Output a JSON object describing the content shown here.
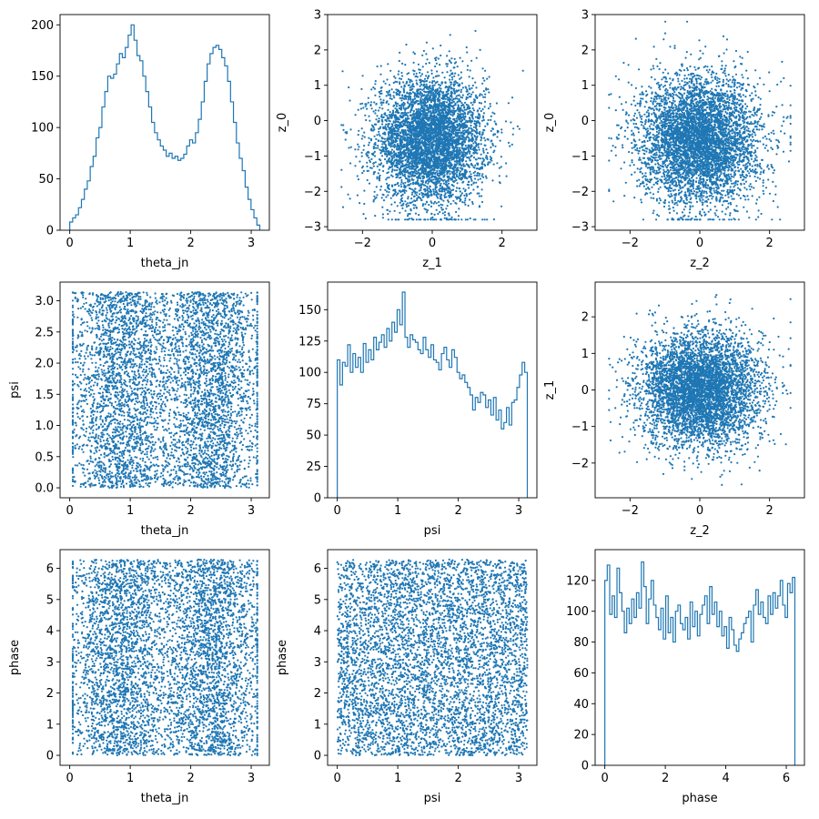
{
  "colors": {
    "series": "#1f77b4",
    "axes": "#000000",
    "background": "#ffffff"
  },
  "chart_data": [
    {
      "id": "theta_jn-hist",
      "type": "histogram",
      "xlabel": "theta_jn",
      "ylabel": "",
      "xlim": [
        -0.16,
        3.3
      ],
      "ylim": [
        0,
        210
      ],
      "xticks": [
        0,
        1,
        2,
        3
      ],
      "yticks": [
        0,
        50,
        100,
        150,
        200
      ],
      "bin_range": [
        0,
        3.1416
      ],
      "counts": [
        8,
        12,
        15,
        22,
        30,
        40,
        48,
        62,
        72,
        90,
        100,
        120,
        135,
        150,
        148,
        152,
        162,
        172,
        168,
        178,
        190,
        200,
        185,
        170,
        165,
        150,
        135,
        120,
        105,
        95,
        88,
        82,
        78,
        72,
        75,
        70,
        72,
        68,
        70,
        74,
        82,
        88,
        85,
        95,
        108,
        125,
        145,
        162,
        172,
        178,
        180,
        176,
        168,
        160,
        145,
        125,
        105,
        85,
        70,
        58,
        42,
        30,
        20,
        12,
        5
      ]
    },
    {
      "id": "z_1-z_0-scatter",
      "type": "scatter",
      "xlabel": "z_1",
      "ylabel": "z_0",
      "xlim": [
        -3.0,
        3.0
      ],
      "ylim": [
        -3.1,
        3.0
      ],
      "xticks": [
        -2,
        0,
        2
      ],
      "yticks": [
        -3,
        -2,
        -1,
        0,
        1,
        2,
        3
      ],
      "distribution": {
        "kind": "gaussian",
        "x_mean": -0.05,
        "x_sd": 0.78,
        "y_mean": -0.55,
        "y_sd": 0.9,
        "n": 5000,
        "x_clip": [
          -2.6,
          2.6
        ],
        "y_clip": [
          -2.8,
          2.8
        ]
      }
    },
    {
      "id": "z_2-z_0-scatter",
      "type": "scatter",
      "xlabel": "z_2",
      "ylabel": "z_0",
      "xlim": [
        -3.0,
        3.0
      ],
      "ylim": [
        -3.1,
        3.0
      ],
      "xticks": [
        -2,
        0,
        2
      ],
      "yticks": [
        -3,
        -2,
        -1,
        0,
        1,
        2,
        3
      ],
      "distribution": {
        "kind": "gaussian",
        "x_mean": 0.0,
        "x_sd": 0.85,
        "y_mean": -0.55,
        "y_sd": 0.9,
        "n": 5000,
        "x_clip": [
          -2.6,
          2.6
        ],
        "y_clip": [
          -2.8,
          2.8
        ]
      }
    },
    {
      "id": "theta_jn-psi-scatter",
      "type": "scatter",
      "xlabel": "theta_jn",
      "ylabel": "psi",
      "xlim": [
        -0.16,
        3.3
      ],
      "ylim": [
        -0.16,
        3.3
      ],
      "xticks": [
        0,
        1,
        2,
        3
      ],
      "yticks": [
        0.0,
        0.5,
        1.0,
        1.5,
        2.0,
        2.5,
        3.0
      ],
      "ytick_labels": [
        "0.0",
        "0.5",
        "1.0",
        "1.5",
        "2.0",
        "2.5",
        "3.0"
      ],
      "distribution": {
        "kind": "bimodal_x_uniform_y",
        "x_modes": [
          0.85,
          2.35
        ],
        "x_sd": 0.45,
        "y_range": [
          0,
          3.1416
        ],
        "n": 5000,
        "x_clip": [
          0.05,
          3.1
        ]
      }
    },
    {
      "id": "psi-hist",
      "type": "histogram",
      "xlabel": "psi",
      "ylabel": "",
      "xlim": [
        -0.16,
        3.3
      ],
      "ylim": [
        0,
        172
      ],
      "xticks": [
        0,
        1,
        2,
        3
      ],
      "yticks": [
        0,
        25,
        50,
        75,
        100,
        125,
        150
      ],
      "bin_range": [
        0,
        3.1416
      ],
      "counts": [
        110,
        90,
        108,
        105,
        122,
        100,
        115,
        104,
        112,
        100,
        123,
        108,
        118,
        110,
        128,
        118,
        124,
        130,
        120,
        135,
        125,
        140,
        132,
        150,
        138,
        164,
        128,
        120,
        130,
        126,
        124,
        118,
        115,
        128,
        118,
        112,
        122,
        110,
        108,
        102,
        115,
        120,
        110,
        104,
        118,
        112,
        100,
        95,
        98,
        92,
        88,
        82,
        70,
        80,
        76,
        84,
        82,
        72,
        78,
        66,
        80,
        62,
        70,
        55,
        60,
        72,
        58,
        76,
        78,
        88,
        98,
        108,
        100
      ]
    },
    {
      "id": "z_2-z_1-scatter",
      "type": "scatter",
      "xlabel": "z_2",
      "ylabel": "z_1",
      "xlim": [
        -3.0,
        3.0
      ],
      "ylim": [
        -2.95,
        2.95
      ],
      "xticks": [
        -2,
        0,
        2
      ],
      "yticks": [
        -2,
        -1,
        0,
        1,
        2
      ],
      "distribution": {
        "kind": "gaussian",
        "x_mean": 0.0,
        "x_sd": 0.85,
        "y_mean": 0.0,
        "y_sd": 0.78,
        "n": 5000,
        "x_clip": [
          -2.6,
          2.6
        ],
        "y_clip": [
          -2.6,
          2.6
        ]
      }
    },
    {
      "id": "theta_jn-phase-scatter",
      "type": "scatter",
      "xlabel": "theta_jn",
      "ylabel": "phase",
      "xlim": [
        -0.16,
        3.3
      ],
      "ylim": [
        -0.32,
        6.6
      ],
      "xticks": [
        0,
        1,
        2,
        3
      ],
      "yticks": [
        0,
        1,
        2,
        3,
        4,
        5,
        6
      ],
      "distribution": {
        "kind": "bimodal_x_uniform_y",
        "x_modes": [
          0.85,
          2.35
        ],
        "x_sd": 0.45,
        "y_range": [
          0,
          6.2832
        ],
        "n": 5000,
        "x_clip": [
          0.05,
          3.1
        ]
      }
    },
    {
      "id": "psi-phase-scatter",
      "type": "scatter",
      "xlabel": "psi",
      "ylabel": "phase",
      "xlim": [
        -0.16,
        3.3
      ],
      "ylim": [
        -0.32,
        6.6
      ],
      "xticks": [
        0,
        1,
        2,
        3
      ],
      "yticks": [
        0,
        1,
        2,
        3,
        4,
        5,
        6
      ],
      "distribution": {
        "kind": "uniform",
        "x_range": [
          0,
          3.1416
        ],
        "y_range": [
          0,
          6.2832
        ],
        "n": 5000
      }
    },
    {
      "id": "phase-hist",
      "type": "histogram",
      "xlabel": "phase",
      "ylabel": "",
      "xlim": [
        -0.32,
        6.6
      ],
      "ylim": [
        0,
        140
      ],
      "xticks": [
        0,
        2,
        4,
        6
      ],
      "yticks": [
        0,
        20,
        40,
        60,
        80,
        100,
        120
      ],
      "bin_range": [
        0,
        6.2832
      ],
      "counts": [
        120,
        130,
        98,
        110,
        96,
        128,
        112,
        100,
        86,
        102,
        92,
        108,
        96,
        112,
        102,
        132,
        116,
        92,
        108,
        120,
        104,
        96,
        88,
        102,
        82,
        110,
        86,
        96,
        80,
        100,
        104,
        92,
        88,
        96,
        82,
        106,
        90,
        100,
        84,
        98,
        104,
        110,
        92,
        116,
        98,
        106,
        90,
        100,
        84,
        90,
        76,
        96,
        88,
        78,
        74,
        82,
        86,
        92,
        96,
        100,
        80,
        104,
        114,
        98,
        106,
        96,
        92,
        110,
        98,
        112,
        102,
        110,
        120,
        104,
        96,
        118,
        112,
        122
      ]
    }
  ]
}
